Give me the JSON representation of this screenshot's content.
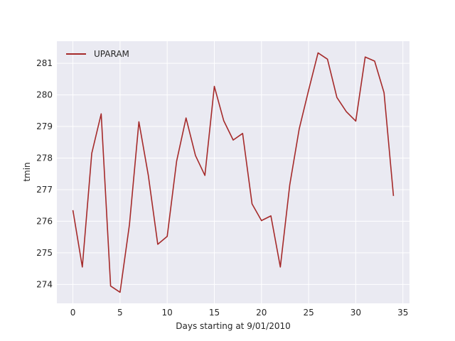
{
  "chart_data": {
    "type": "line",
    "title": "",
    "xlabel": "Days starting at 9/01/2010",
    "ylabel": "tmin",
    "xlim": [
      -1.7,
      35.7
    ],
    "ylim": [
      273.4,
      281.7
    ],
    "xticks": [
      0,
      5,
      10,
      15,
      20,
      25,
      30,
      35
    ],
    "yticks": [
      274,
      275,
      276,
      277,
      278,
      279,
      280,
      281
    ],
    "grid": true,
    "legend_position": "upper-left",
    "background": "#eaeaf2",
    "series": [
      {
        "name": "UPARAM",
        "color": "#a52a2a",
        "x": [
          0,
          1,
          2,
          3,
          4,
          5,
          6,
          7,
          8,
          9,
          10,
          11,
          12,
          13,
          14,
          15,
          16,
          17,
          18,
          19,
          20,
          21,
          22,
          23,
          24,
          25,
          26,
          27,
          28,
          29,
          30,
          31,
          32,
          33,
          34
        ],
        "y": [
          276.35,
          274.55,
          278.15,
          279.4,
          273.95,
          273.75,
          275.9,
          279.15,
          277.45,
          275.27,
          275.52,
          277.9,
          279.27,
          278.08,
          277.45,
          280.27,
          279.18,
          278.57,
          278.78,
          276.55,
          276.02,
          276.17,
          274.55,
          277.15,
          278.92,
          280.15,
          281.33,
          281.13,
          279.92,
          279.47,
          279.17,
          281.2,
          281.07,
          280.07,
          276.8
        ]
      }
    ]
  }
}
